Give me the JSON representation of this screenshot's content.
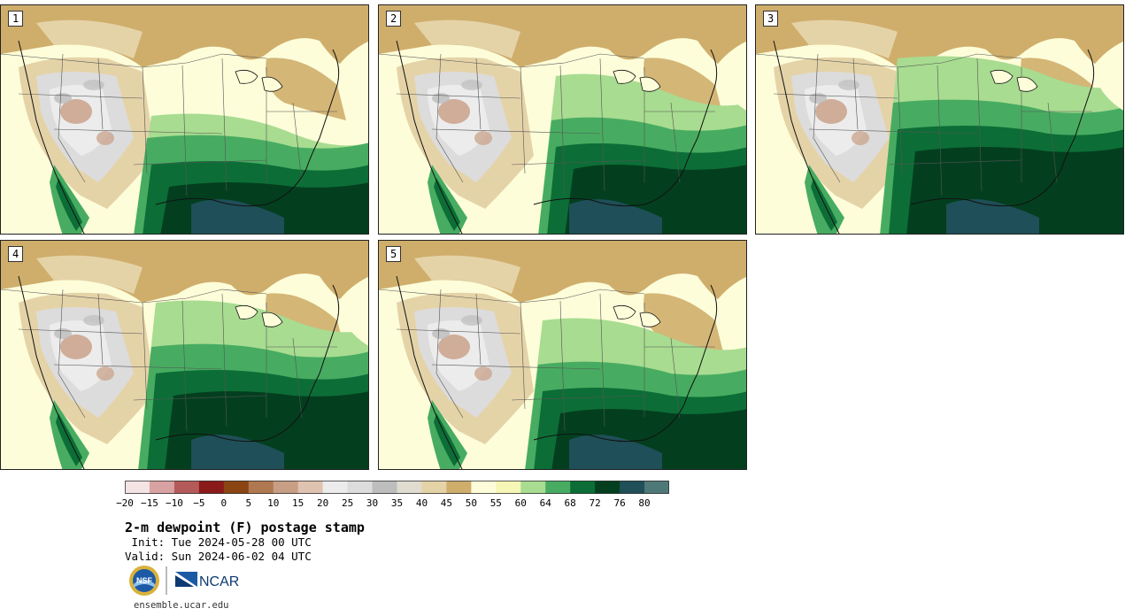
{
  "panels": [
    {
      "label": "1"
    },
    {
      "label": "2"
    },
    {
      "label": "3"
    },
    {
      "label": "4"
    },
    {
      "label": "5"
    }
  ],
  "colorbar": {
    "colors": [
      "#f4e4e4",
      "#d8a2a2",
      "#b55a5a",
      "#8b1a1a",
      "#8b4513",
      "#b07850",
      "#c89e85",
      "#dfc3b0",
      "#ececec",
      "#dcdcdc",
      "#bdbdbd",
      "#e0dcd0",
      "#e5d3a8",
      "#cfae6c",
      "#fdfdd9",
      "#f6f6b6",
      "#a8dc91",
      "#47ac61",
      "#0c6e36",
      "#033f1f",
      "#1f4f58",
      "#4f7978"
    ],
    "tick_labels": [
      "−20",
      "−15",
      "−10",
      "−5",
      "0",
      "5",
      "10",
      "15",
      "20",
      "25",
      "30",
      "35",
      "40",
      "45",
      "50",
      "55",
      "60",
      "64",
      "68",
      "72",
      "76",
      "80"
    ]
  },
  "title": "2-m dewpoint (F) postage stamp",
  "init": " Init: Tue 2024-05-28 00 UTC",
  "valid": "Valid: Sun 2024-06-02 04 UTC",
  "logos": {
    "nsf": "NSF",
    "ncar": "NCAR"
  },
  "site": "ensemble.ucar.edu"
}
